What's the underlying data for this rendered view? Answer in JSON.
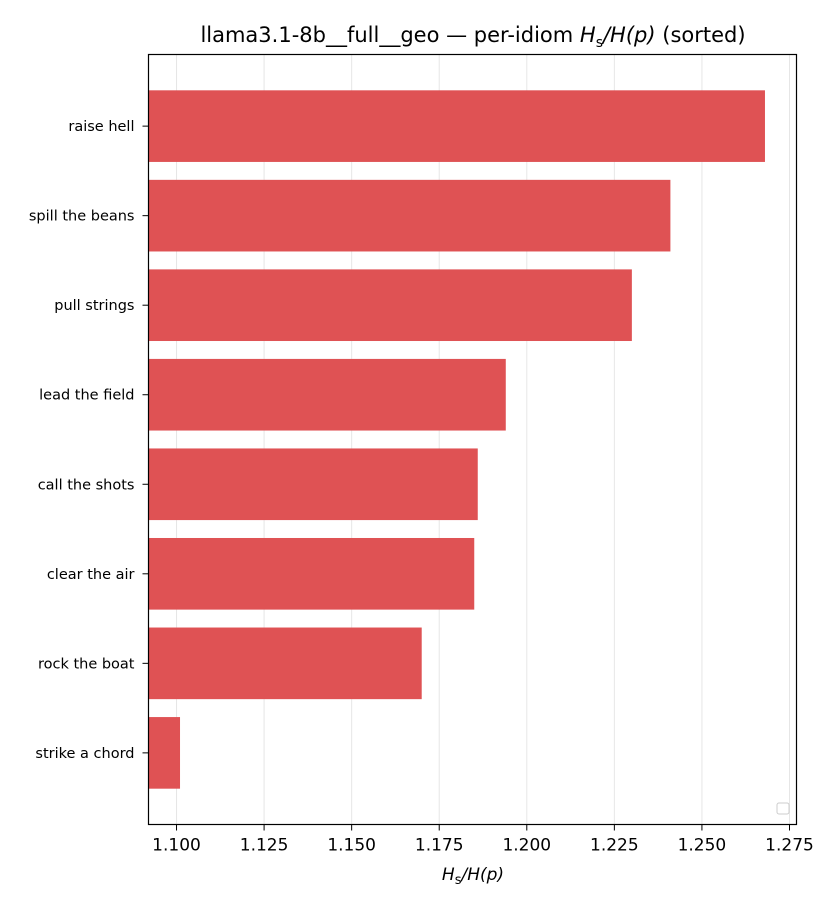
{
  "chart_data": {
    "type": "bar",
    "orientation": "horizontal",
    "title": "llama3.1-8b__full__geo — per-idiom H_s/H(p) (sorted)",
    "title_parts": {
      "prefix": "llama3.1-8b__full__geo — per-idiom ",
      "math_numer": "H",
      "math_numer_sub": "s",
      "math_denom": "/H(p)",
      "suffix": " (sorted)"
    },
    "xlabel": "H_s/H(p)",
    "xlabel_parts": {
      "H": "H",
      "sub": "s",
      "rest": "/H(p)"
    },
    "ylabel": "",
    "categories": [
      "raise hell",
      "spill the beans",
      "pull strings",
      "lead the field",
      "call the shots",
      "clear the air",
      "rock the boat",
      "strike a chord"
    ],
    "values": [
      1.268,
      1.241,
      1.23,
      1.194,
      1.186,
      1.185,
      1.17,
      1.101
    ],
    "xlim": [
      1.092,
      1.277
    ],
    "xticks": [
      "1.100",
      "1.125",
      "1.150",
      "1.175",
      "1.200",
      "1.225",
      "1.250",
      "1.275"
    ],
    "xtick_values": [
      1.1,
      1.125,
      1.15,
      1.175,
      1.2,
      1.225,
      1.25,
      1.275
    ],
    "bar_color": "#df5254",
    "grid": "vertical",
    "legend": "lower-right (empty)"
  }
}
